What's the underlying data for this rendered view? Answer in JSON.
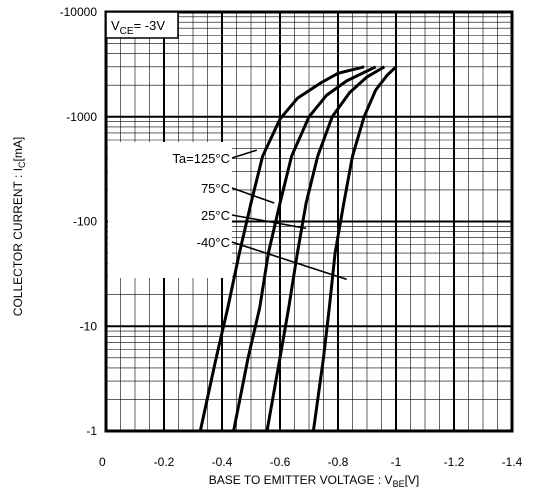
{
  "chart_data": {
    "type": "line",
    "title": "",
    "xlabel": {
      "main": "BASE TO EMITTER VOLTAGE : V",
      "sub": "BE",
      "tail": "[V]"
    },
    "ylabel": {
      "main": "COLLECTOR CURRENT : I",
      "sub": "C",
      "tail": "[mA]"
    },
    "condition": {
      "main": "V",
      "sub": "CE",
      "tail": "= -3V"
    },
    "x_scale": "linear",
    "y_scale": "log",
    "xlim": [
      0,
      -1.4
    ],
    "ylim": [
      -1,
      -10000
    ],
    "x_ticks": [
      0,
      -0.2,
      -0.4,
      -0.6,
      -0.8,
      -1,
      -1.2,
      -1.4
    ],
    "x_tick_labels": [
      "0",
      "-0.2",
      "-0.4",
      "-0.6",
      "-0.8",
      "-1",
      "-1.2",
      "-1.4"
    ],
    "y_ticks": [
      -1,
      -10,
      -100,
      -1000,
      -10000
    ],
    "y_tick_labels": [
      "-1",
      "-10",
      "-100",
      "-1000",
      "-10000"
    ],
    "grid": true,
    "series": [
      {
        "name": "Ta=125°C",
        "points": [
          [
            -0.325,
            -1
          ],
          [
            -0.38,
            -5
          ],
          [
            -0.42,
            -15
          ],
          [
            -0.46,
            -50
          ],
          [
            -0.5,
            -150
          ],
          [
            -0.54,
            -420
          ],
          [
            -0.6,
            -950
          ],
          [
            -0.66,
            -1500
          ],
          [
            -0.74,
            -2100
          ],
          [
            -0.8,
            -2600
          ],
          [
            -0.89,
            -3000
          ]
        ]
      },
      {
        "name": "75°C",
        "points": [
          [
            -0.44,
            -1
          ],
          [
            -0.49,
            -5
          ],
          [
            -0.53,
            -15
          ],
          [
            -0.56,
            -50
          ],
          [
            -0.6,
            -150
          ],
          [
            -0.64,
            -420
          ],
          [
            -0.7,
            -1000
          ],
          [
            -0.76,
            -1600
          ],
          [
            -0.83,
            -2200
          ],
          [
            -0.93,
            -3000
          ]
        ]
      },
      {
        "name": "25°C",
        "points": [
          [
            -0.555,
            -1
          ],
          [
            -0.6,
            -5
          ],
          [
            -0.63,
            -15
          ],
          [
            -0.66,
            -50
          ],
          [
            -0.69,
            -150
          ],
          [
            -0.73,
            -420
          ],
          [
            -0.78,
            -1000
          ],
          [
            -0.84,
            -1700
          ],
          [
            -0.9,
            -2400
          ],
          [
            -0.96,
            -3000
          ]
        ]
      },
      {
        "name": "-40°C",
        "points": [
          [
            -0.715,
            -1
          ],
          [
            -0.75,
            -5
          ],
          [
            -0.77,
            -15
          ],
          [
            -0.79,
            -50
          ],
          [
            -0.82,
            -150
          ],
          [
            -0.85,
            -420
          ],
          [
            -0.89,
            -1000
          ],
          [
            -0.93,
            -1800
          ],
          [
            -0.97,
            -2500
          ],
          [
            -1.0,
            -3000
          ]
        ]
      }
    ],
    "annotations": [
      {
        "label": "Ta=125°C",
        "x": -0.52,
        "y": -480
      },
      {
        "label": "75°C",
        "x": -0.58,
        "y": -150
      },
      {
        "label": "25°C",
        "x": -0.69,
        "y": -86
      },
      {
        "label": "-40°C",
        "x": -0.83,
        "y": -28
      }
    ],
    "legend_position": "left, inside plot"
  }
}
